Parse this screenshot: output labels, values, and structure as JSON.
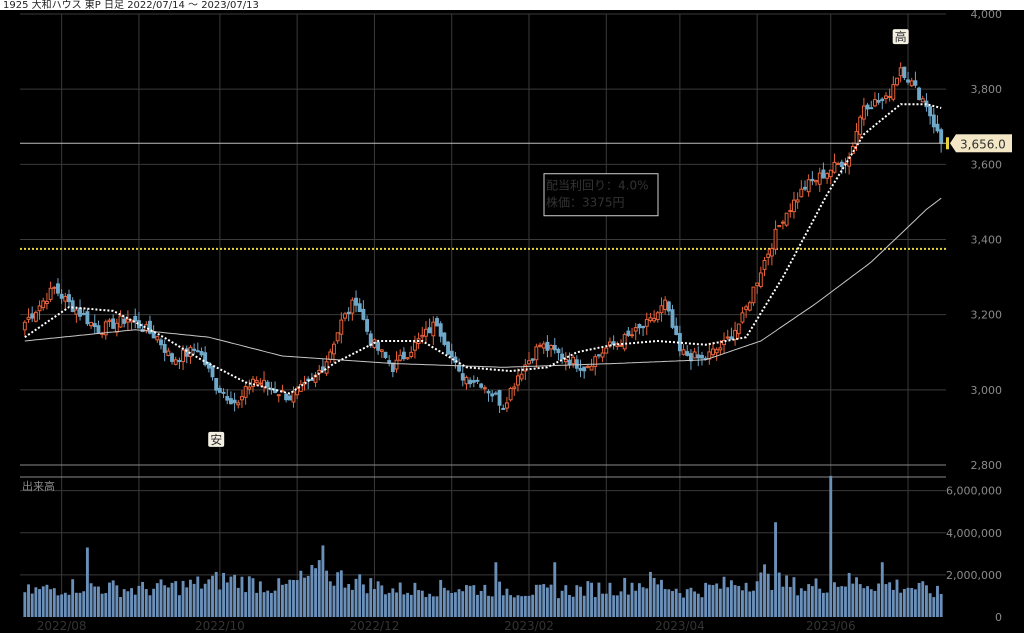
{
  "header": {
    "title": "1925 大和ハウス 東P 日足 2022/07/14 ～ 2023/07/13"
  },
  "colors": {
    "background": "#000000",
    "candle_up": "#e8633a",
    "candle_down": "#6fa8c8",
    "volume_bar": "#6a8fb8",
    "ma_short": "#ffffff",
    "ma_long": "#c8c8c8",
    "dividend_line": "#e6d23a",
    "last_price_badge": "#f3e7c6"
  },
  "chart_data": {
    "type": "candlestick",
    "title": "1925 大和ハウス 東P 日足 2022/07/14 ～ 2023/07/13",
    "price_axis": {
      "ylim": [
        2800,
        4000
      ],
      "ticks": [
        "4,000",
        "3,800",
        "3,600",
        "3,400",
        "3,200",
        "3,000",
        "2,800"
      ],
      "position": "right"
    },
    "volume_axis": {
      "label": "出来高",
      "ylim": [
        0,
        6600000
      ],
      "ticks": [
        "6,000,000",
        "4,000,000",
        "2,000,000",
        "0"
      ],
      "position": "right"
    },
    "x_ticks": [
      "2022/08",
      "2022/10",
      "2022/12",
      "2023/02",
      "2023/04",
      "2023/06"
    ],
    "grid": true,
    "series": [
      {
        "role": "price",
        "anchors": [
          [
            0,
            3180
          ],
          [
            8,
            3270
          ],
          [
            12,
            3230
          ],
          [
            20,
            3160
          ],
          [
            28,
            3190
          ],
          [
            36,
            3140
          ],
          [
            40,
            3080
          ],
          [
            47,
            3110
          ],
          [
            52,
            3010
          ],
          [
            58,
            2960
          ],
          [
            62,
            3030
          ],
          [
            68,
            3000
          ],
          [
            72,
            2980
          ],
          [
            78,
            3020
          ],
          [
            82,
            3080
          ],
          [
            86,
            3180
          ],
          [
            90,
            3240
          ],
          [
            94,
            3130
          ],
          [
            100,
            3060
          ],
          [
            106,
            3120
          ],
          [
            112,
            3180
          ],
          [
            118,
            3040
          ],
          [
            124,
            3020
          ],
          [
            130,
            2960
          ],
          [
            134,
            3040
          ],
          [
            140,
            3120
          ],
          [
            146,
            3090
          ],
          [
            152,
            3060
          ],
          [
            158,
            3110
          ],
          [
            164,
            3140
          ],
          [
            170,
            3180
          ],
          [
            174,
            3230
          ],
          [
            178,
            3100
          ],
          [
            184,
            3080
          ],
          [
            190,
            3120
          ],
          [
            195,
            3190
          ],
          [
            200,
            3320
          ],
          [
            206,
            3460
          ],
          [
            212,
            3540
          ],
          [
            218,
            3580
          ],
          [
            224,
            3620
          ],
          [
            228,
            3760
          ],
          [
            234,
            3770
          ],
          [
            238,
            3860
          ],
          [
            242,
            3800
          ],
          [
            245,
            3760
          ],
          [
            249,
            3656
          ]
        ]
      },
      {
        "role": "ma_short",
        "anchors": [
          [
            0,
            3140
          ],
          [
            12,
            3220
          ],
          [
            24,
            3210
          ],
          [
            36,
            3150
          ],
          [
            48,
            3080
          ],
          [
            60,
            3020
          ],
          [
            72,
            2990
          ],
          [
            84,
            3070
          ],
          [
            96,
            3130
          ],
          [
            108,
            3130
          ],
          [
            120,
            3060
          ],
          [
            132,
            3050
          ],
          [
            142,
            3060
          ],
          [
            150,
            3100
          ],
          [
            160,
            3120
          ],
          [
            172,
            3130
          ],
          [
            185,
            3120
          ],
          [
            196,
            3140
          ],
          [
            206,
            3300
          ],
          [
            218,
            3520
          ],
          [
            228,
            3680
          ],
          [
            238,
            3760
          ],
          [
            245,
            3760
          ],
          [
            249,
            3750
          ]
        ]
      },
      {
        "role": "ma_long",
        "anchors": [
          [
            0,
            3130
          ],
          [
            30,
            3160
          ],
          [
            50,
            3140
          ],
          [
            70,
            3090
          ],
          [
            100,
            3070
          ],
          [
            130,
            3060
          ],
          [
            160,
            3070
          ],
          [
            185,
            3080
          ],
          [
            200,
            3130
          ],
          [
            215,
            3230
          ],
          [
            230,
            3340
          ],
          [
            245,
            3480
          ],
          [
            249,
            3510
          ]
        ]
      },
      {
        "role": "volume",
        "anchors": [
          [
            0,
            1200000
          ],
          [
            15,
            1500000
          ],
          [
            30,
            1300000
          ],
          [
            45,
            1500000
          ],
          [
            55,
            1800000
          ],
          [
            70,
            1400000
          ],
          [
            80,
            2100000
          ],
          [
            100,
            1300000
          ],
          [
            120,
            1400000
          ],
          [
            140,
            1200000
          ],
          [
            160,
            1400000
          ],
          [
            170,
            1700000
          ],
          [
            180,
            1200000
          ],
          [
            190,
            1500000
          ],
          [
            200,
            1800000
          ],
          [
            212,
            1400000
          ],
          [
            222,
            1700000
          ],
          [
            232,
            1600000
          ],
          [
            242,
            1400000
          ],
          [
            249,
            1100000
          ]
        ]
      }
    ],
    "volume_spikes": [
      [
        17,
        3300000
      ],
      [
        81,
        3400000
      ],
      [
        128,
        2600000
      ],
      [
        144,
        2600000
      ],
      [
        201,
        2500000
      ],
      [
        204,
        4500000
      ],
      [
        219,
        6700000
      ],
      [
        233,
        2600000
      ]
    ],
    "price_high_marker": {
      "label": "高",
      "value": 3880
    },
    "price_low_marker": {
      "label": "安",
      "value": 2920
    },
    "dividend_line_value": 3375,
    "annotation": {
      "line1": "配当利回り：4.0%",
      "line2": "株価：3375円"
    },
    "last_price": "3,656.0"
  }
}
